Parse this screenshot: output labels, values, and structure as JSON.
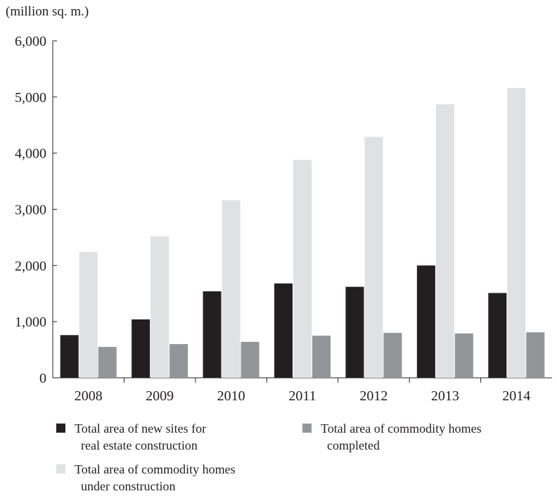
{
  "unit_label": "(million sq. m.)",
  "chart_data": {
    "type": "bar",
    "title": "",
    "xlabel": "",
    "ylabel": "(million sq. m.)",
    "ylim": [
      0,
      6000
    ],
    "y_ticks": [
      "0",
      "1,000",
      "2,000",
      "3,000",
      "4,000",
      "5,000",
      "6,000"
    ],
    "categories": [
      "2008",
      "2009",
      "2010",
      "2011",
      "2012",
      "2013",
      "2014"
    ],
    "series": [
      {
        "name": "Total area of new sites for real estate construction",
        "values": [
          760,
          1040,
          1540,
          1680,
          1620,
          2000,
          1510
        ],
        "color": "#231f20"
      },
      {
        "name": "Total area of commodity homes under construction",
        "values": [
          2240,
          2520,
          3160,
          3880,
          4290,
          4870,
          5160
        ],
        "color": "#e0e1e3"
      },
      {
        "name": "Total area of commodity homes completed",
        "values": [
          550,
          600,
          640,
          750,
          800,
          790,
          810
        ],
        "color": "#939598"
      }
    ],
    "grid": false,
    "legend_position": "bottom"
  },
  "legend": [
    {
      "line1": "Total area of new sites for",
      "line2": "real estate construction",
      "color": "#231f20"
    },
    {
      "line1": "Total area of commodity homes",
      "line2": "completed",
      "color": "#939598"
    },
    {
      "line1": "Total area of commodity homes",
      "line2": "under construction",
      "color": "#e0e1e3"
    }
  ]
}
